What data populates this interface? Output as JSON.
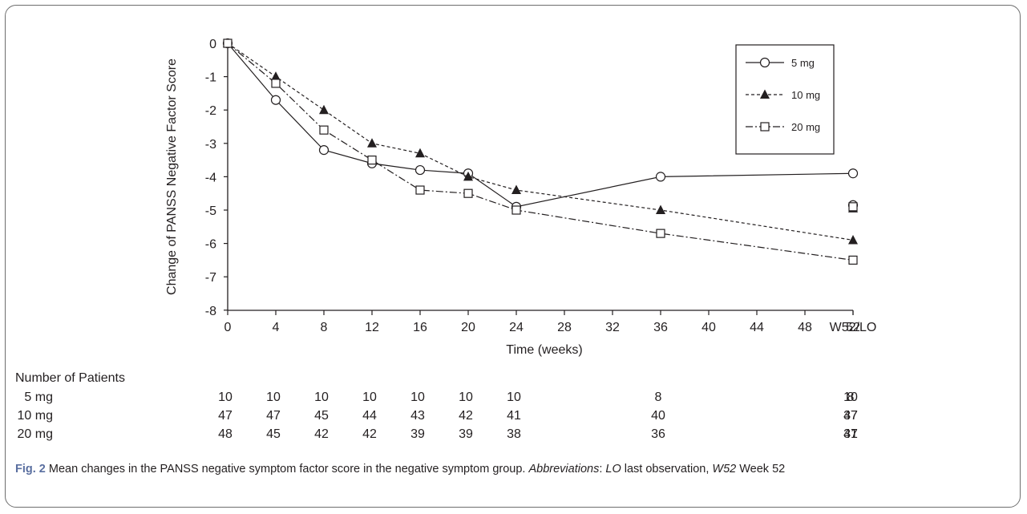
{
  "chart_data": {
    "type": "line",
    "ylabel": "Change of PANSS Negative Factor Score",
    "xlabel": "Time (weeks)",
    "ylim": [
      -8,
      0
    ],
    "yticks": [
      "0",
      "-1",
      "-2",
      "-3",
      "-4",
      "-5",
      "-6",
      "-7",
      "-8"
    ],
    "xticks": [
      "0",
      "4",
      "8",
      "12",
      "16",
      "20",
      "24",
      "28",
      "32",
      "36",
      "40",
      "44",
      "48",
      "52",
      "W52/LO"
    ],
    "x": [
      0,
      4,
      8,
      12,
      16,
      20,
      24,
      36,
      52
    ],
    "series": [
      {
        "name": "5 mg",
        "marker": "circle-open",
        "line": "solid",
        "values": [
          0,
          -1.7,
          -3.2,
          -3.6,
          -3.8,
          -3.9,
          -4.9,
          -4.0,
          -3.9
        ],
        "w52lo": -4.85
      },
      {
        "name": "10 mg",
        "marker": "triangle-filled",
        "line": "dashed",
        "values": [
          0,
          -1.0,
          -2.0,
          -3.0,
          -3.3,
          -4.0,
          -4.4,
          -5.0,
          -5.9
        ],
        "w52lo": -4.95
      },
      {
        "name": "20 mg",
        "marker": "square-open",
        "line": "dash-dot",
        "values": [
          0,
          -1.2,
          -2.6,
          -3.5,
          -4.4,
          -4.5,
          -5.0,
          -5.7,
          -6.5
        ],
        "w52lo": -4.9
      }
    ],
    "legend_position": "top-right",
    "grid": false
  },
  "patients": {
    "title": "Number of Patients",
    "rows": [
      {
        "label": "5 mg",
        "counts": [
          "10",
          "10",
          "10",
          "10",
          "10",
          "10",
          "10",
          "8",
          "8",
          "10"
        ]
      },
      {
        "label": "10 mg",
        "counts": [
          "47",
          "47",
          "45",
          "44",
          "43",
          "42",
          "41",
          "40",
          "37",
          "47"
        ]
      },
      {
        "label": "20 mg",
        "counts": [
          "48",
          "45",
          "42",
          "42",
          "39",
          "39",
          "38",
          "36",
          "31",
          "47"
        ]
      }
    ]
  },
  "caption": {
    "label": "Fig. 2",
    "text": " Mean changes in the PANSS negative symptom factor score in the negative symptom group. ",
    "abbr_label": "Abbreviations",
    "abbr_sep": ": ",
    "abbr1_key": "LO",
    "abbr1_text": " last observation, ",
    "abbr2_key": "W52",
    "abbr2_text": " Week 52"
  }
}
